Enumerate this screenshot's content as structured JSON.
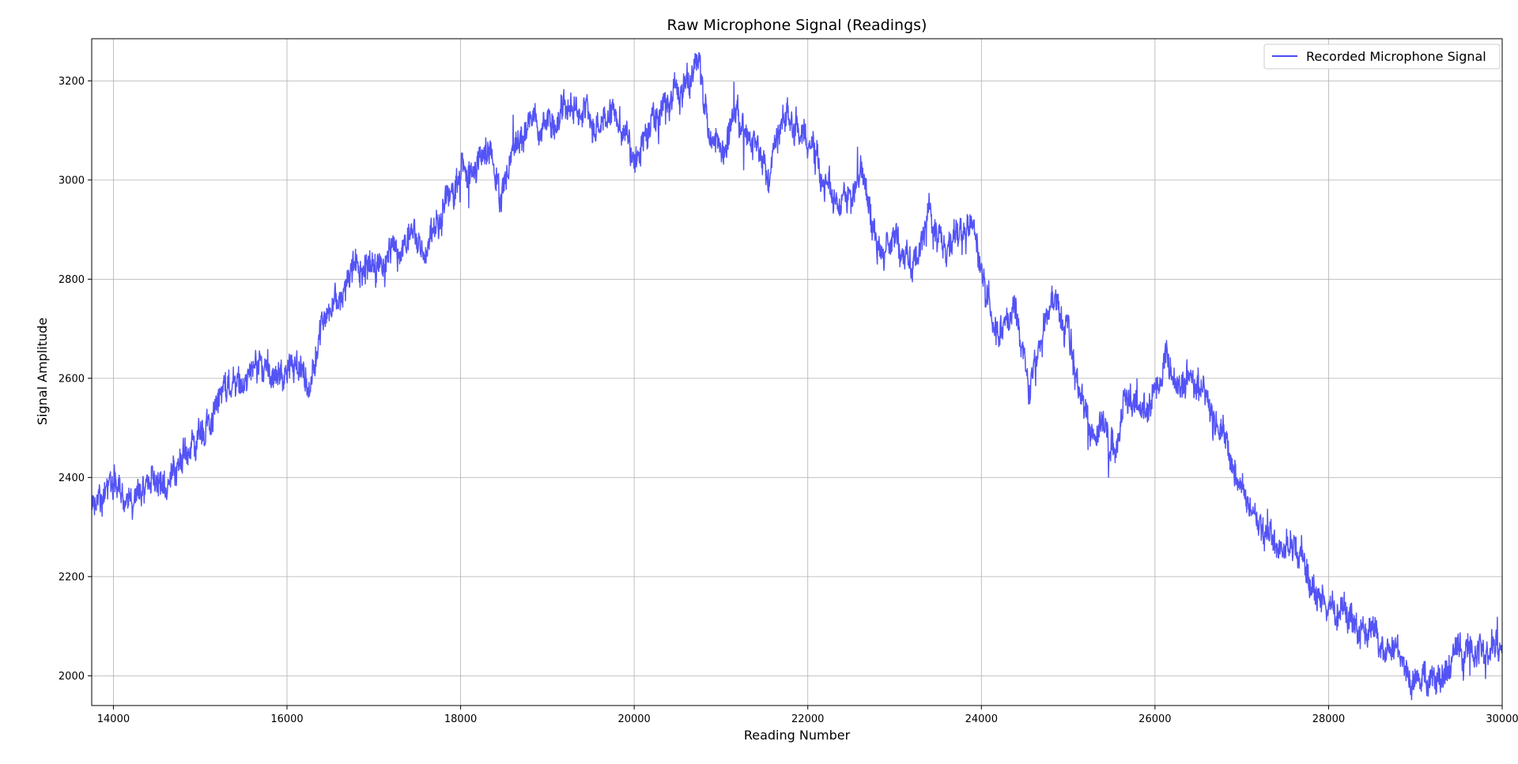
{
  "chart_data": {
    "type": "line",
    "title": "Raw Microphone Signal (Readings)",
    "xlabel": "Reading Number",
    "ylabel": "Signal Amplitude",
    "xlim": [
      13750,
      30000
    ],
    "ylim": [
      1940,
      3285
    ],
    "xticks": [
      14000,
      16000,
      18000,
      20000,
      22000,
      24000,
      26000,
      28000,
      30000
    ],
    "yticks": [
      2000,
      2200,
      2400,
      2600,
      2800,
      3000,
      3200
    ],
    "grid": true,
    "legend_position": "top-right",
    "series": [
      {
        "name": "Recorded Microphone Signal",
        "color": "#4a4af5",
        "noise_amplitude": 30,
        "points_per_reading": 0.25,
        "trend": [
          [
            13750,
            2340
          ],
          [
            14000,
            2385
          ],
          [
            14150,
            2330
          ],
          [
            14300,
            2370
          ],
          [
            14500,
            2390
          ],
          [
            14700,
            2410
          ],
          [
            14850,
            2450
          ],
          [
            15000,
            2490
          ],
          [
            15150,
            2520
          ],
          [
            15300,
            2600
          ],
          [
            15500,
            2590
          ],
          [
            15700,
            2630
          ],
          [
            15900,
            2590
          ],
          [
            16100,
            2640
          ],
          [
            16250,
            2600
          ],
          [
            16350,
            2680
          ],
          [
            16500,
            2730
          ],
          [
            16650,
            2790
          ],
          [
            16800,
            2820
          ],
          [
            17000,
            2820
          ],
          [
            17200,
            2850
          ],
          [
            17400,
            2880
          ],
          [
            17600,
            2860
          ],
          [
            17800,
            2940
          ],
          [
            18000,
            3000
          ],
          [
            18200,
            3040
          ],
          [
            18350,
            3050
          ],
          [
            18450,
            2960
          ],
          [
            18600,
            3060
          ],
          [
            18800,
            3130
          ],
          [
            19000,
            3120
          ],
          [
            19200,
            3150
          ],
          [
            19400,
            3130
          ],
          [
            19600,
            3100
          ],
          [
            19750,
            3150
          ],
          [
            19900,
            3080
          ],
          [
            20050,
            3040
          ],
          [
            20200,
            3090
          ],
          [
            20400,
            3160
          ],
          [
            20600,
            3200
          ],
          [
            20750,
            3230
          ],
          [
            20900,
            3090
          ],
          [
            21050,
            3050
          ],
          [
            21200,
            3130
          ],
          [
            21400,
            3060
          ],
          [
            21550,
            3000
          ],
          [
            21700,
            3120
          ],
          [
            21900,
            3100
          ],
          [
            22050,
            3070
          ],
          [
            22200,
            2990
          ],
          [
            22350,
            2950
          ],
          [
            22550,
            2970
          ],
          [
            22650,
            3010
          ],
          [
            22800,
            2860
          ],
          [
            23000,
            2870
          ],
          [
            23200,
            2830
          ],
          [
            23400,
            2930
          ],
          [
            23550,
            2880
          ],
          [
            23700,
            2870
          ],
          [
            23900,
            2920
          ],
          [
            24050,
            2770
          ],
          [
            24200,
            2690
          ],
          [
            24400,
            2740
          ],
          [
            24550,
            2570
          ],
          [
            24700,
            2690
          ],
          [
            24850,
            2760
          ],
          [
            25000,
            2680
          ],
          [
            25100,
            2600
          ],
          [
            25250,
            2490
          ],
          [
            25400,
            2500
          ],
          [
            25550,
            2460
          ],
          [
            25650,
            2550
          ],
          [
            25850,
            2530
          ],
          [
            26000,
            2590
          ],
          [
            26100,
            2650
          ],
          [
            26250,
            2600
          ],
          [
            26450,
            2580
          ],
          [
            26600,
            2550
          ],
          [
            26750,
            2490
          ],
          [
            26900,
            2420
          ],
          [
            27050,
            2360
          ],
          [
            27200,
            2300
          ],
          [
            27400,
            2270
          ],
          [
            27600,
            2250
          ],
          [
            27800,
            2200
          ],
          [
            28000,
            2130
          ],
          [
            28200,
            2130
          ],
          [
            28400,
            2100
          ],
          [
            28600,
            2060
          ],
          [
            28800,
            2040
          ],
          [
            29000,
            2010
          ],
          [
            29200,
            2000
          ],
          [
            29350,
            2000
          ],
          [
            29500,
            2050
          ],
          [
            29700,
            2050
          ],
          [
            29900,
            2060
          ],
          [
            30000,
            2060
          ]
        ]
      }
    ]
  }
}
